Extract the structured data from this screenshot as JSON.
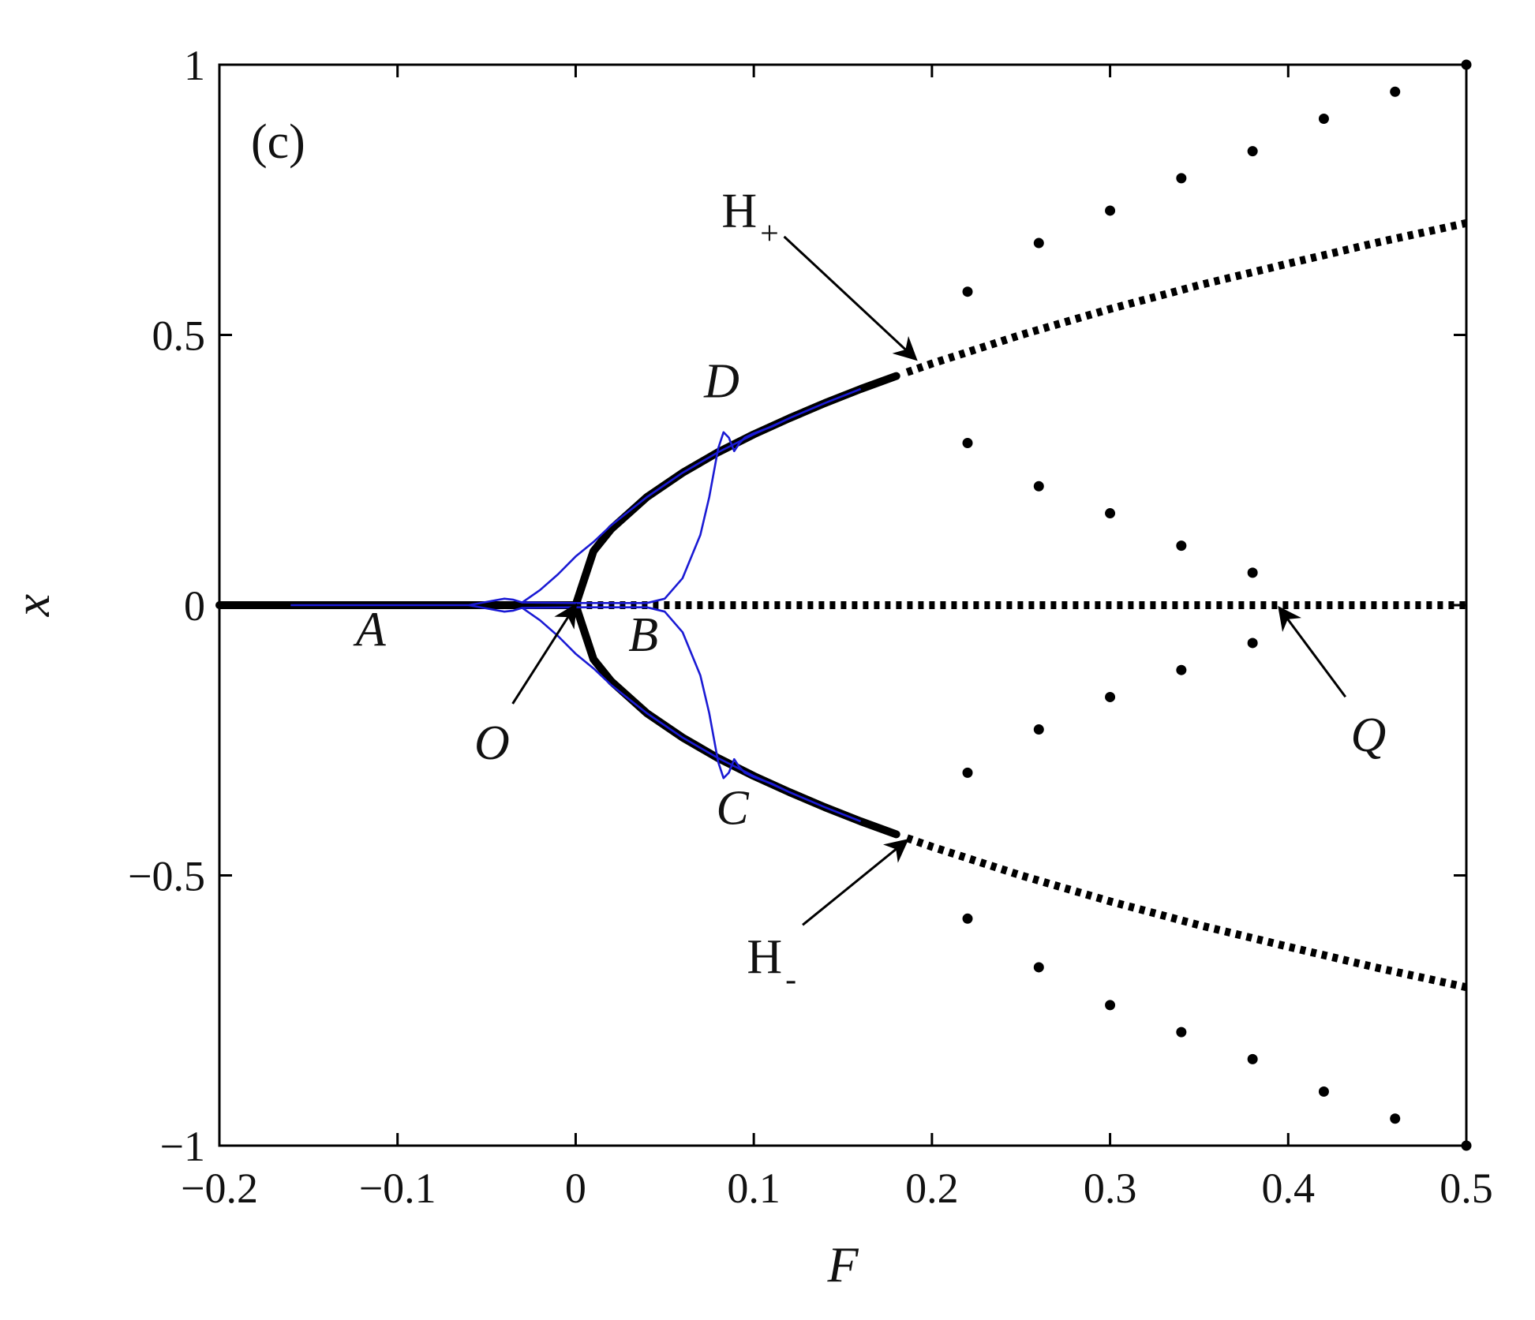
{
  "chart_data": {
    "type": "line",
    "panel_label": "(c)",
    "xlabel": "F",
    "ylabel": "x",
    "xlim": [
      -0.2,
      0.5
    ],
    "ylim": [
      -1,
      1
    ],
    "xticks": [
      -0.2,
      -0.1,
      0,
      0.1,
      0.2,
      0.3,
      0.4,
      0.5
    ],
    "yticks": [
      -1,
      -0.5,
      0,
      0.5,
      1
    ],
    "xtick_labels": [
      "−0.2",
      "−0.1",
      "0",
      "0.1",
      "0.2",
      "0.3",
      "0.4",
      "0.5"
    ],
    "ytick_labels": [
      "−1",
      "−0.5",
      "0",
      "0.5",
      "1"
    ],
    "grid": false,
    "series": [
      {
        "style": "stable-solid-black",
        "x": [
          -0.2,
          0
        ],
        "y": [
          0,
          0
        ]
      },
      {
        "style": "unstable-dotted-black",
        "x": [
          0,
          0.5
        ],
        "y": [
          0,
          0
        ]
      },
      {
        "style": "stable-solid-black",
        "x": [
          0,
          0.01,
          0.02,
          0.04,
          0.06,
          0.08,
          0.1,
          0.12,
          0.14,
          0.16,
          0.18
        ],
        "y": [
          0,
          0.1,
          0.141,
          0.2,
          0.245,
          0.283,
          0.316,
          0.346,
          0.374,
          0.4,
          0.424
        ]
      },
      {
        "style": "stable-solid-black",
        "x": [
          0,
          0.01,
          0.02,
          0.04,
          0.06,
          0.08,
          0.1,
          0.12,
          0.14,
          0.16,
          0.18
        ],
        "y": [
          0,
          -0.1,
          -0.141,
          -0.2,
          -0.245,
          -0.283,
          -0.316,
          -0.346,
          -0.374,
          -0.4,
          -0.424
        ]
      },
      {
        "style": "unstable-dotted-black",
        "x": [
          0.186,
          0.2,
          0.25,
          0.3,
          0.35,
          0.4,
          0.45,
          0.5
        ],
        "y": [
          0.431,
          0.447,
          0.5,
          0.548,
          0.592,
          0.632,
          0.671,
          0.707
        ]
      },
      {
        "style": "unstable-dotted-black",
        "x": [
          0.186,
          0.2,
          0.25,
          0.3,
          0.35,
          0.4,
          0.45,
          0.5
        ],
        "y": [
          -0.431,
          -0.447,
          -0.5,
          -0.548,
          -0.592,
          -0.632,
          -0.671,
          -0.707
        ]
      },
      {
        "style": "periodic-orbit-dots",
        "x": [
          0.22,
          0.26,
          0.3,
          0.34,
          0.38,
          0.42,
          0.46,
          0.5
        ],
        "y": [
          0.58,
          0.67,
          0.73,
          0.79,
          0.84,
          0.9,
          0.95,
          1.0
        ]
      },
      {
        "style": "periodic-orbit-dots",
        "x": [
          0.22,
          0.26,
          0.3,
          0.34,
          0.38
        ],
        "y": [
          0.3,
          0.22,
          0.17,
          0.11,
          0.06
        ]
      },
      {
        "style": "periodic-orbit-dots",
        "x": [
          0.22,
          0.26,
          0.3,
          0.34,
          0.38
        ],
        "y": [
          -0.31,
          -0.23,
          -0.17,
          -0.12,
          -0.07
        ]
      },
      {
        "style": "periodic-orbit-dots",
        "x": [
          0.22,
          0.26,
          0.3,
          0.34,
          0.38,
          0.42,
          0.46,
          0.5
        ],
        "y": [
          -0.58,
          -0.67,
          -0.74,
          -0.79,
          -0.84,
          -0.9,
          -0.95,
          -1.0
        ]
      },
      {
        "style": "trajectory-blue",
        "x": [
          -0.16,
          -0.06,
          -0.05,
          -0.04,
          -0.035,
          -0.03,
          -0.02,
          -0.01,
          0,
          0.01,
          0.02,
          0.04,
          0.06,
          0.08,
          0.1,
          0.12,
          0.14,
          0.16
        ],
        "y": [
          0,
          0,
          0.006,
          0.012,
          0.01,
          0.005,
          0.028,
          0.057,
          0.09,
          0.117,
          0.148,
          0.2,
          0.245,
          0.283,
          0.316,
          0.346,
          0.374,
          0.4
        ]
      },
      {
        "style": "trajectory-blue",
        "x": [
          -0.06,
          -0.05,
          -0.04,
          -0.035,
          -0.03,
          -0.02,
          -0.01,
          0,
          0.01,
          0.02,
          0.04,
          0.06,
          0.08,
          0.1,
          0.12,
          0.14,
          0.16
        ],
        "y": [
          0,
          -0.006,
          -0.012,
          -0.01,
          -0.005,
          -0.028,
          -0.057,
          -0.09,
          -0.117,
          -0.148,
          -0.2,
          -0.245,
          -0.283,
          -0.316,
          -0.346,
          -0.374,
          -0.4
        ]
      },
      {
        "style": "trajectory-blue",
        "x": [
          -0.03,
          0.0,
          0.04,
          0.05,
          0.06,
          0.07,
          0.075,
          0.08,
          0.083,
          0.086,
          0.089,
          0.092,
          0.095,
          0.1,
          0.11,
          0.12
        ],
        "y": [
          0.005,
          0.004,
          0.004,
          0.012,
          0.05,
          0.13,
          0.2,
          0.29,
          0.32,
          0.31,
          0.285,
          0.3,
          0.31,
          0.318,
          0.33,
          0.346
        ]
      },
      {
        "style": "trajectory-blue",
        "x": [
          -0.03,
          0.0,
          0.04,
          0.05,
          0.06,
          0.07,
          0.075,
          0.08,
          0.083,
          0.086,
          0.089,
          0.092,
          0.095,
          0.1,
          0.11,
          0.12
        ],
        "y": [
          -0.005,
          -0.004,
          -0.004,
          -0.012,
          -0.05,
          -0.13,
          -0.2,
          -0.29,
          -0.32,
          -0.31,
          -0.285,
          -0.3,
          -0.31,
          -0.318,
          -0.33,
          -0.346
        ]
      }
    ],
    "annotations": [
      {
        "text": "A",
        "italic": true,
        "x": -0.115,
        "y": -0.075
      },
      {
        "text": "B",
        "italic": true,
        "x": 0.038,
        "y": -0.085
      },
      {
        "text": "C",
        "italic": true,
        "x": 0.088,
        "y": -0.405
      },
      {
        "text": "D",
        "italic": true,
        "x": 0.082,
        "y": 0.385
      },
      {
        "text": "O",
        "italic": true,
        "x": -0.047,
        "y": -0.285,
        "arrow_to": [
          0,
          0
        ]
      },
      {
        "text": "Q",
        "italic": true,
        "x": 0.445,
        "y": -0.27,
        "arrow_to": [
          0.395,
          -0.005
        ]
      },
      {
        "text": "H",
        "sub": "+",
        "italic": false,
        "x": 0.098,
        "y": 0.7,
        "arrow_to": [
          0.191,
          0.455
        ]
      },
      {
        "text": "H",
        "sub": "-",
        "italic": false,
        "x": 0.11,
        "y": -0.68,
        "arrow_to": [
          0.186,
          -0.435
        ]
      }
    ],
    "colors": {
      "stable": "#000000",
      "trajectory": "#1a1ad4"
    }
  }
}
